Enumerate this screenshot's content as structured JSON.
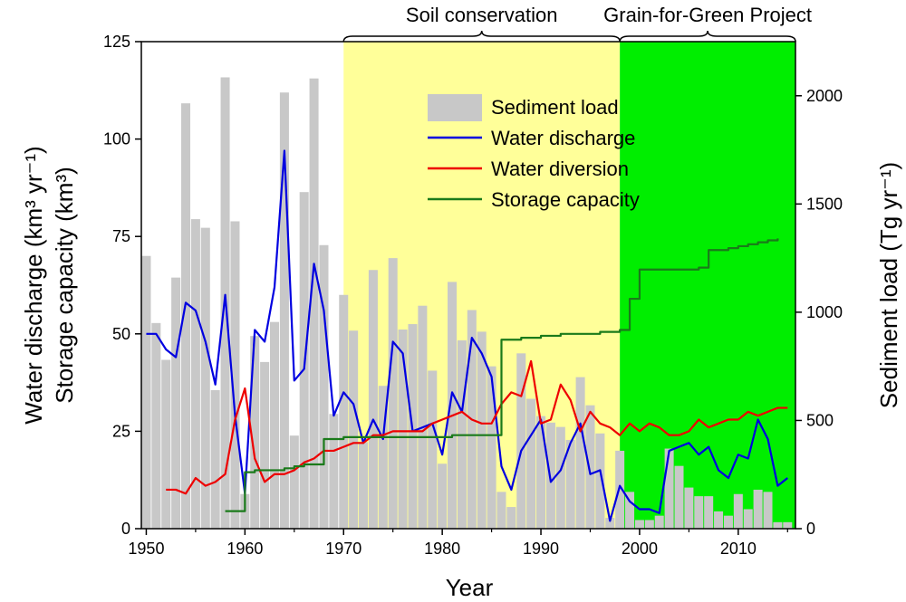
{
  "chart_data": {
    "type": "bar+line",
    "xlabel": "Year",
    "ylabel_left_line1": "Water discharge (km³ yr⁻¹)",
    "ylabel_left_line2": "Storage capacity (km³)",
    "ylabel_right": "Sediment load (Tg yr⁻¹)",
    "xlim": [
      1949.5,
      2015.8
    ],
    "ylim_left": [
      0,
      125
    ],
    "ylim_right": [
      0,
      2250
    ],
    "x_ticks": [
      1950,
      1960,
      1970,
      1980,
      1990,
      2000,
      2010
    ],
    "y_left_ticks": [
      0,
      25,
      50,
      75,
      100,
      125
    ],
    "y_right_ticks": [
      0,
      500,
      1000,
      1500,
      2000
    ],
    "periods": [
      {
        "label": "Soil conservation",
        "start": 1970,
        "end": 1998,
        "color": "#ffff99"
      },
      {
        "label": "Grain-for-Green Project",
        "start": 1998,
        "end": 2015.8,
        "color": "#00ee00"
      }
    ],
    "legend": [
      {
        "label": "Sediment load",
        "kind": "bar",
        "color": "#c8c8c8"
      },
      {
        "label": "Water discharge",
        "kind": "line",
        "color": "#0000e0"
      },
      {
        "label": "Water diversion",
        "kind": "line",
        "color": "#ee0000"
      },
      {
        "label": "Storage capacity",
        "kind": "step",
        "color": "#1a7a1a"
      }
    ],
    "series": [
      {
        "name": "Sediment load",
        "axis": "right",
        "x": [
          1950,
          1951,
          1952,
          1953,
          1954,
          1955,
          1956,
          1957,
          1958,
          1959,
          1960,
          1961,
          1962,
          1963,
          1964,
          1965,
          1966,
          1967,
          1968,
          1969,
          1970,
          1971,
          1972,
          1973,
          1974,
          1975,
          1976,
          1977,
          1978,
          1979,
          1980,
          1981,
          1982,
          1983,
          1984,
          1985,
          1986,
          1987,
          1988,
          1989,
          1990,
          1991,
          1992,
          1993,
          1994,
          1995,
          1996,
          1997,
          1998,
          1999,
          2000,
          2001,
          2002,
          2003,
          2004,
          2005,
          2006,
          2007,
          2008,
          2009,
          2010,
          2011,
          2012,
          2013,
          2014,
          2015
        ],
        "values": [
          1260,
          950,
          780,
          1160,
          1965,
          1430,
          1390,
          640,
          2085,
          1420,
          160,
          890,
          770,
          955,
          2015,
          430,
          1555,
          2080,
          1310,
          530,
          1080,
          915,
          400,
          1195,
          660,
          1250,
          920,
          945,
          1030,
          730,
          300,
          1140,
          870,
          1010,
          910,
          750,
          170,
          100,
          810,
          600,
          520,
          490,
          470,
          410,
          700,
          570,
          440,
          50,
          360,
          170,
          40,
          40,
          60,
          370,
          290,
          190,
          150,
          150,
          80,
          60,
          160,
          90,
          180,
          170,
          30,
          30
        ]
      },
      {
        "name": "Water discharge",
        "axis": "left",
        "x": [
          1950,
          1951,
          1952,
          1953,
          1954,
          1955,
          1956,
          1957,
          1958,
          1959,
          1960,
          1961,
          1962,
          1963,
          1964,
          1965,
          1966,
          1967,
          1968,
          1969,
          1970,
          1971,
          1972,
          1973,
          1974,
          1975,
          1976,
          1977,
          1978,
          1979,
          1980,
          1981,
          1982,
          1983,
          1984,
          1985,
          1986,
          1987,
          1988,
          1989,
          1990,
          1991,
          1992,
          1993,
          1994,
          1995,
          1996,
          1997,
          1998,
          1999,
          2000,
          2001,
          2002,
          2003,
          2004,
          2005,
          2006,
          2007,
          2008,
          2009,
          2010,
          2011,
          2012,
          2013,
          2014,
          2015
        ],
        "values": [
          50,
          50,
          46,
          44,
          58,
          56,
          48,
          37,
          60,
          29,
          9,
          51,
          48,
          62,
          97,
          38,
          41,
          68,
          56,
          29,
          35,
          32,
          22,
          28,
          23,
          48,
          45,
          25,
          26,
          27,
          19,
          35,
          30,
          49,
          45,
          39,
          16,
          10,
          20,
          24,
          28,
          12,
          15,
          22,
          27,
          14,
          15,
          2,
          11,
          7,
          5,
          5,
          4,
          20,
          21,
          22,
          19,
          21,
          15,
          13,
          19,
          18,
          28,
          23,
          11,
          13
        ]
      },
      {
        "name": "Water diversion",
        "axis": "left",
        "x": [
          1952,
          1953,
          1954,
          1955,
          1956,
          1957,
          1958,
          1959,
          1960,
          1961,
          1962,
          1963,
          1964,
          1965,
          1966,
          1967,
          1968,
          1969,
          1970,
          1971,
          1972,
          1973,
          1974,
          1975,
          1976,
          1977,
          1978,
          1979,
          1980,
          1981,
          1982,
          1983,
          1984,
          1985,
          1986,
          1987,
          1988,
          1989,
          1990,
          1991,
          1992,
          1993,
          1994,
          1995,
          1996,
          1997,
          1998,
          1999,
          2000,
          2001,
          2002,
          2003,
          2004,
          2005,
          2006,
          2007,
          2008,
          2009,
          2010,
          2011,
          2012,
          2013,
          2014,
          2015
        ],
        "values": [
          10,
          10,
          9,
          13,
          11,
          12,
          14,
          28,
          36,
          18,
          12,
          14,
          14,
          15,
          17,
          18,
          20,
          20,
          21,
          22,
          22,
          24,
          24,
          25,
          25,
          25,
          25,
          27,
          28,
          29,
          30,
          28,
          27,
          27,
          32,
          35,
          34,
          43,
          27,
          28,
          37,
          33,
          25,
          30,
          27,
          26,
          24,
          27,
          25,
          27,
          26,
          24,
          24,
          25,
          28,
          26,
          27,
          28,
          28,
          30,
          29,
          30,
          31,
          31
        ]
      },
      {
        "name": "Storage capacity",
        "axis": "left",
        "kind": "step",
        "x": [
          1958,
          1959,
          1960,
          1961,
          1962,
          1963,
          1964,
          1965,
          1966,
          1967,
          1968,
          1969,
          1970,
          1971,
          1972,
          1973,
          1974,
          1975,
          1976,
          1977,
          1978,
          1979,
          1980,
          1981,
          1982,
          1983,
          1984,
          1985,
          1986,
          1987,
          1988,
          1989,
          1990,
          1991,
          1992,
          1993,
          1994,
          1995,
          1996,
          1997,
          1998,
          1999,
          2000,
          2001,
          2002,
          2003,
          2004,
          2005,
          2006,
          2007,
          2008,
          2009,
          2010,
          2011,
          2012,
          2013,
          2014
        ],
        "values": [
          4.5,
          4.5,
          14.5,
          15,
          15,
          15,
          15.5,
          16,
          16.5,
          16.5,
          23,
          23,
          23.5,
          23.5,
          23.5,
          23.5,
          23.5,
          23.5,
          23.5,
          23.5,
          23.5,
          23.5,
          23.5,
          24,
          24,
          24,
          24,
          24,
          48.5,
          48.5,
          49,
          49,
          49.5,
          49.5,
          50,
          50,
          50,
          50,
          50.5,
          50.5,
          51,
          59,
          66.5,
          66.5,
          66.5,
          66.5,
          66.5,
          66.5,
          67,
          71.5,
          71.5,
          72,
          72.5,
          73,
          73.5,
          74,
          74.5
        ]
      }
    ]
  }
}
